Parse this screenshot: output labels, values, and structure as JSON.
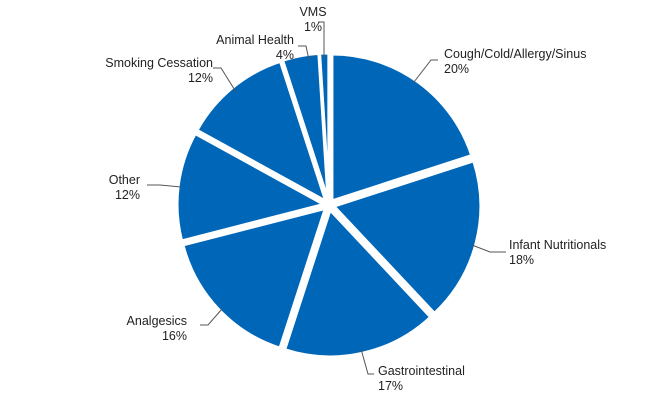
{
  "chart_data": {
    "type": "pie",
    "title": "",
    "start_angle_deg": 0,
    "direction": "clockwise",
    "exploded": true,
    "color": "#0066B8",
    "categories": [
      "Cough/Cold/Allergy/Sinus",
      "Infant Nutritionals",
      "Gastrointestinal",
      "Analgesics",
      "Other",
      "Smoking Cessation",
      "Animal Health",
      "VMS"
    ],
    "values": [
      20,
      18,
      17,
      16,
      12,
      12,
      4,
      1
    ],
    "labels": [
      {
        "name": "Cough/Cold/Allergy/Sinus",
        "pct": "20%"
      },
      {
        "name": "Infant Nutritionals",
        "pct": "18%"
      },
      {
        "name": "Gastrointestinal",
        "pct": "17%"
      },
      {
        "name": "Analgesics",
        "pct": "16%"
      },
      {
        "name": "Other",
        "pct": "12%"
      },
      {
        "name": "Smoking Cessation",
        "pct": "12%"
      },
      {
        "name": "Animal Health",
        "pct": "4%"
      },
      {
        "name": "VMS",
        "pct": "1%"
      }
    ]
  }
}
